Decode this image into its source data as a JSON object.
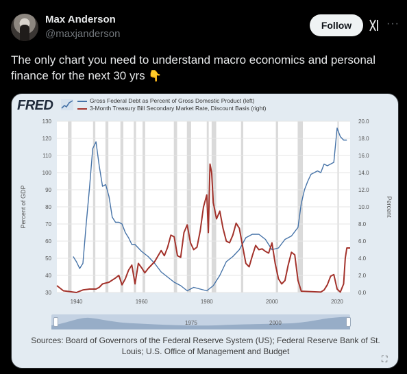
{
  "author": {
    "name": "Max Anderson",
    "handle": "@maxjanderson"
  },
  "header": {
    "follow_label": "Follow",
    "grok_icon": "grok-icon",
    "more_label": "···"
  },
  "tweet": {
    "text": "The only chart you need to understand macro economics and personal finance for the next 30 yrs",
    "emoji": "👇"
  },
  "chart_card": {
    "logo": "FRED",
    "legend": [
      {
        "label": "Gross Federal Debt as Percent of Gross Domestic Product (left)",
        "color": "#4572a7"
      },
      {
        "label": "3-Month Treasury Bill Secondary Market Rate, Discount Basis (right)",
        "color": "#a3322b"
      }
    ],
    "scroller_labels": [
      "1975",
      "2000"
    ],
    "sources": "Sources: Board of Governors of the Federal Reserve System (US); Federal Reserve Bank of St. Louis; U.S. Office of Management and Budget",
    "expand_icon": "⛶"
  },
  "chart_data": {
    "type": "line",
    "ylabel": "Percent of GDP",
    "y2label": "Percent",
    "xlim": [
      1934,
      2024
    ],
    "ylim": [
      30,
      130
    ],
    "y2lim": [
      0,
      20
    ],
    "x_ticks": [
      1940,
      1960,
      1980,
      2000,
      2020
    ],
    "y_ticks": [
      30,
      40,
      50,
      60,
      70,
      80,
      90,
      100,
      110,
      120,
      130
    ],
    "y2_ticks": [
      "0.0",
      "2.0",
      "4.0",
      "6.0",
      "8.0",
      "10.0",
      "12.0",
      "14.0",
      "16.0",
      "18.0",
      "20.0"
    ],
    "recessions": [
      [
        1937.4,
        1938.5
      ],
      [
        1945.1,
        1945.8
      ],
      [
        1948.9,
        1949.8
      ],
      [
        1953.5,
        1954.4
      ],
      [
        1957.6,
        1958.3
      ],
      [
        1960.3,
        1961.1
      ],
      [
        1969.9,
        1970.9
      ],
      [
        1973.9,
        1975.2
      ],
      [
        1980.0,
        1980.6
      ],
      [
        1981.5,
        1982.9
      ],
      [
        1990.5,
        1991.2
      ],
      [
        2001.2,
        2001.9
      ],
      [
        2007.9,
        2009.5
      ],
      [
        2020.1,
        2020.4
      ]
    ],
    "series": [
      {
        "name": "Gross Federal Debt as Percent of Gross Domestic Product (left)",
        "axis": "left",
        "color": "#4572a7",
        "x": [
          1939,
          1940,
          1941,
          1942,
          1943,
          1944,
          1945,
          1946,
          1947,
          1948,
          1949,
          1950,
          1951,
          1952,
          1953,
          1954,
          1955,
          1956,
          1957,
          1958,
          1959,
          1960,
          1962,
          1964,
          1966,
          1968,
          1970,
          1972,
          1974,
          1976,
          1978,
          1980,
          1982,
          1984,
          1986,
          1988,
          1990,
          1992,
          1994,
          1996,
          1998,
          2000,
          2002,
          2004,
          2006,
          2008,
          2009,
          2010,
          2011,
          2012,
          2013,
          2014,
          2015,
          2016,
          2017,
          2018,
          2019,
          2020,
          2021,
          2022,
          2023
        ],
        "values": [
          51,
          48,
          44,
          47,
          70,
          91,
          114,
          118,
          104,
          92,
          93,
          86,
          74,
          71,
          71,
          70,
          65,
          62,
          58,
          58,
          56,
          54,
          51,
          47,
          42,
          39,
          36,
          34,
          31,
          33,
          32,
          31,
          34,
          40,
          48,
          51,
          55,
          62,
          64,
          64,
          61,
          55,
          56,
          61,
          63,
          68,
          82,
          90,
          95,
          99,
          100,
          101,
          100,
          105,
          104,
          105,
          106,
          126,
          121,
          119,
          119
        ]
      },
      {
        "name": "3-Month Treasury Bill Secondary Market Rate, Discount Basis (right)",
        "axis": "right",
        "color": "#a3322b",
        "x": [
          1934,
          1936,
          1938,
          1940,
          1942,
          1944,
          1946,
          1947,
          1948,
          1950,
          1952,
          1953,
          1954,
          1955,
          1956,
          1957,
          1958,
          1959,
          1960,
          1961,
          1962,
          1964,
          1966,
          1967,
          1968,
          1969,
          1970,
          1971,
          1972,
          1973,
          1974,
          1975,
          1976,
          1977,
          1978,
          1979,
          1980,
          1980.5,
          1981,
          1981.5,
          1982,
          1983,
          1984,
          1985,
          1986,
          1987,
          1988,
          1989,
          1990,
          1991,
          1992,
          1993,
          1994,
          1995,
          1996,
          1997,
          1998,
          1999,
          2000,
          2001,
          2002,
          2003,
          2004,
          2005,
          2006,
          2007,
          2008,
          2009,
          2012,
          2015,
          2016,
          2017,
          2018,
          2019,
          2020,
          2021,
          2022,
          2022.5,
          2023,
          2024
        ],
        "values": [
          0.8,
          0.2,
          0.1,
          0.0,
          0.3,
          0.4,
          0.4,
          0.6,
          1.0,
          1.2,
          1.7,
          2.0,
          0.9,
          1.6,
          2.6,
          3.2,
          1.0,
          3.4,
          2.9,
          2.3,
          2.8,
          3.6,
          4.9,
          4.3,
          5.3,
          6.7,
          6.5,
          4.3,
          4.1,
          7.0,
          7.9,
          5.8,
          5.0,
          5.3,
          7.2,
          10.0,
          11.4,
          7.0,
          15.0,
          14.0,
          10.5,
          8.6,
          9.5,
          7.5,
          6.0,
          5.8,
          6.7,
          8.1,
          7.5,
          5.4,
          3.4,
          3.0,
          4.3,
          5.5,
          5.0,
          5.1,
          4.8,
          4.6,
          5.8,
          3.4,
          1.6,
          1.0,
          1.4,
          3.2,
          4.7,
          4.4,
          1.4,
          0.15,
          0.1,
          0.05,
          0.3,
          0.9,
          1.9,
          2.1,
          0.4,
          0.05,
          1.0,
          4.0,
          5.2,
          5.2
        ]
      }
    ]
  }
}
